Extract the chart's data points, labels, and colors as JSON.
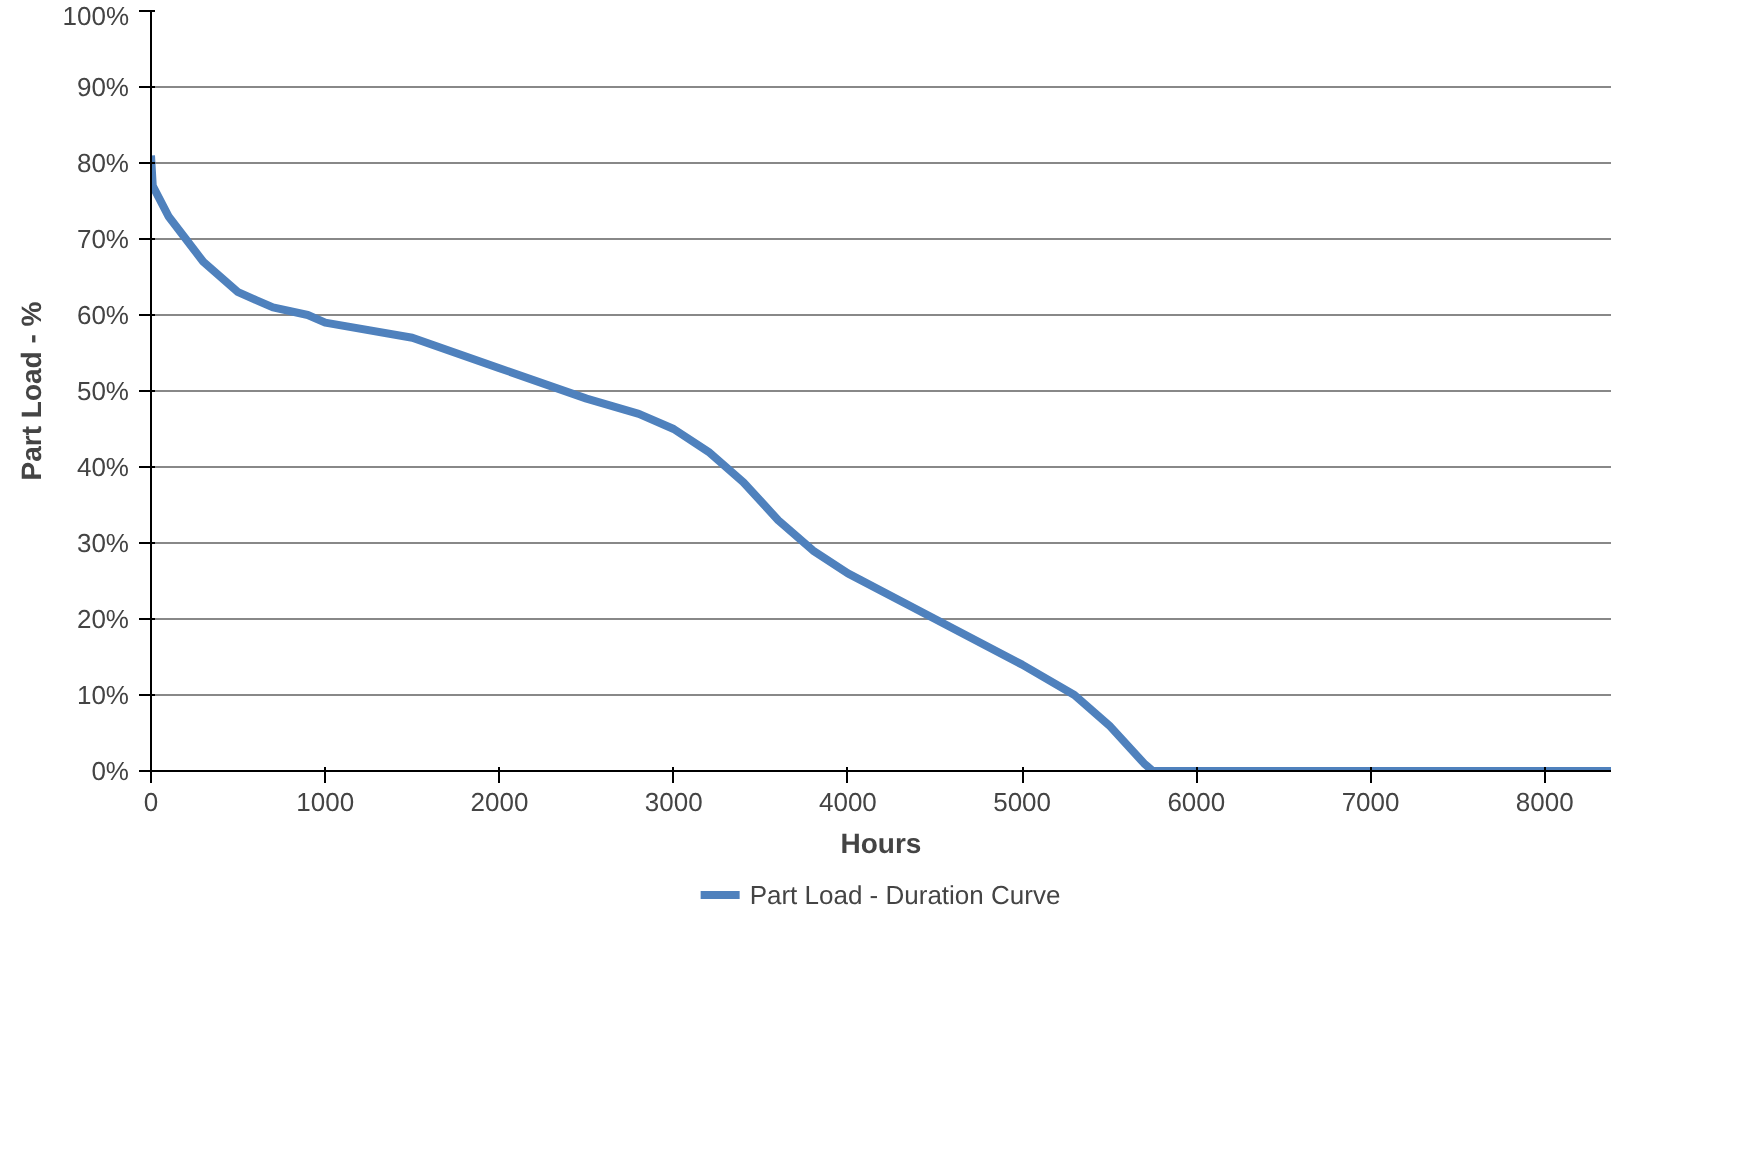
{
  "chart_data": {
    "type": "line",
    "xlabel": "Hours",
    "ylabel": "Part Load - %",
    "x": [
      0,
      10,
      100,
      200,
      300,
      400,
      500,
      600,
      700,
      900,
      1000,
      1500,
      2000,
      2500,
      2800,
      3000,
      3200,
      3400,
      3600,
      3800,
      4000,
      4500,
      5000,
      5300,
      5500,
      5700,
      5750,
      8380
    ],
    "series": [
      {
        "name": "Part Load - Duration Curve",
        "color": "#4f81bd",
        "values": [
          81,
          77,
          73,
          70,
          67,
          65,
          63,
          62,
          61,
          60,
          59,
          57,
          53,
          49,
          47,
          45,
          42,
          38,
          33,
          29,
          26,
          20,
          14,
          10,
          6,
          1,
          0,
          0
        ]
      }
    ],
    "xlim": [
      0,
      8380
    ],
    "xticks": [
      0,
      1000,
      2000,
      3000,
      4000,
      5000,
      6000,
      7000,
      8000
    ],
    "ylim": [
      0,
      100
    ],
    "yticks": [
      {
        "value": 0,
        "label": "0%"
      },
      {
        "value": 10,
        "label": "10%"
      },
      {
        "value": 20,
        "label": "20%"
      },
      {
        "value": 30,
        "label": "30%"
      },
      {
        "value": 40,
        "label": "40%"
      },
      {
        "value": 50,
        "label": "50%"
      },
      {
        "value": 60,
        "label": "60%"
      },
      {
        "value": 70,
        "label": "70%"
      },
      {
        "value": 80,
        "label": "80%"
      },
      {
        "value": 90,
        "label": "90%"
      },
      {
        "value": 100,
        "label": "100%"
      }
    ],
    "grid": "y",
    "legend": "bottom",
    "marker": "none",
    "line_style": "solid"
  }
}
